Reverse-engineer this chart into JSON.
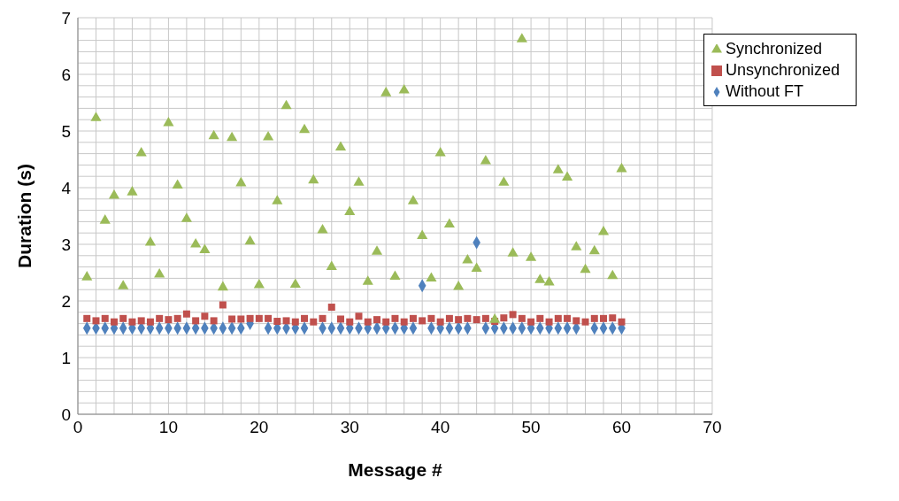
{
  "chart_data": {
    "type": "scatter",
    "xlabel": "Message #",
    "ylabel": "Duration (s)",
    "x": [
      1,
      2,
      3,
      4,
      5,
      6,
      7,
      8,
      9,
      10,
      11,
      12,
      13,
      14,
      15,
      16,
      17,
      18,
      19,
      20,
      21,
      22,
      23,
      24,
      25,
      26,
      27,
      28,
      29,
      30,
      31,
      32,
      33,
      34,
      35,
      36,
      37,
      38,
      39,
      40,
      41,
      42,
      43,
      44,
      45,
      46,
      47,
      48,
      49,
      50,
      51,
      52,
      53,
      54,
      55,
      56,
      57,
      58,
      59,
      60
    ],
    "series": [
      {
        "name": "Without FT",
        "color": "#4f81bd",
        "marker": "diamond",
        "values": [
          1.52,
          1.52,
          1.52,
          1.52,
          1.52,
          1.52,
          1.52,
          1.52,
          1.52,
          1.52,
          1.52,
          1.52,
          1.52,
          1.52,
          1.52,
          1.52,
          1.52,
          1.52,
          1.6,
          null,
          1.52,
          1.52,
          1.52,
          1.52,
          1.52,
          null,
          1.52,
          1.52,
          1.52,
          1.52,
          1.52,
          1.52,
          1.52,
          1.52,
          1.52,
          1.52,
          1.52,
          2.27,
          1.52,
          1.52,
          1.52,
          1.52,
          1.52,
          3.03,
          1.52,
          1.52,
          1.52,
          1.52,
          1.52,
          1.52,
          1.52,
          1.52,
          1.52,
          1.52,
          1.52,
          null,
          1.52,
          1.52,
          1.52,
          1.52
        ]
      },
      {
        "name": "Unsynchronized",
        "color": "#c0504d",
        "marker": "square",
        "values": [
          1.69,
          1.65,
          1.69,
          1.63,
          1.69,
          1.63,
          1.65,
          1.63,
          1.69,
          1.67,
          1.69,
          1.77,
          1.65,
          1.73,
          1.65,
          1.93,
          1.68,
          1.68,
          1.69,
          1.69,
          1.69,
          1.64,
          1.65,
          1.63,
          1.69,
          1.63,
          1.69,
          1.89,
          1.68,
          1.63,
          1.73,
          1.63,
          1.67,
          1.63,
          1.69,
          1.63,
          1.69,
          1.65,
          1.69,
          1.63,
          1.69,
          1.67,
          1.69,
          1.67,
          1.69,
          1.64,
          1.7,
          1.76,
          1.69,
          1.63,
          1.69,
          1.63,
          1.69,
          1.69,
          1.65,
          1.63,
          1.69,
          1.69,
          1.7,
          1.63
        ]
      },
      {
        "name": "Synchronized",
        "color": "#9bbb59",
        "marker": "triangle",
        "values": [
          2.42,
          5.23,
          3.42,
          3.86,
          2.26,
          3.92,
          4.61,
          3.03,
          2.47,
          5.14,
          4.04,
          3.45,
          3.0,
          2.9,
          4.91,
          2.24,
          4.88,
          4.08,
          3.05,
          2.28,
          4.89,
          3.76,
          5.44,
          2.29,
          5.02,
          4.13,
          3.25,
          2.6,
          4.71,
          3.57,
          4.09,
          2.34,
          2.87,
          5.67,
          2.43,
          5.72,
          3.76,
          3.15,
          2.4,
          4.61,
          3.35,
          2.25,
          2.72,
          2.57,
          4.47,
          1.67,
          4.09,
          2.84,
          6.62,
          2.76,
          2.37,
          2.33,
          4.31,
          4.18,
          2.95,
          2.55,
          2.88,
          3.22,
          2.44,
          4.33
        ]
      }
    ],
    "xlim": [
      0,
      70
    ],
    "xticks": [
      0,
      {
        "value": 2,
        "label": null
      },
      {
        "value": 4,
        "label": null
      },
      {
        "value": 6,
        "label": null
      },
      {
        "value": 8,
        "label": null
      },
      10,
      {
        "value": 12,
        "label": null
      },
      {
        "value": 14,
        "label": null
      },
      {
        "value": 16,
        "label": null
      },
      {
        "value": 18,
        "label": null
      },
      20,
      {
        "value": 22,
        "label": null
      },
      {
        "value": 24,
        "label": null
      },
      {
        "value": 26,
        "label": null
      },
      {
        "value": 28,
        "label": null
      },
      30,
      {
        "value": 32,
        "label": null
      },
      {
        "value": 34,
        "label": null
      },
      {
        "value": 36,
        "label": null
      },
      {
        "value": 38,
        "label": null
      },
      40,
      {
        "value": 42,
        "label": null
      },
      {
        "value": 44,
        "label": null
      },
      {
        "value": 46,
        "label": null
      },
      {
        "value": 48,
        "label": null
      },
      50,
      {
        "value": 52,
        "label": null
      },
      {
        "value": 54,
        "label": null
      },
      {
        "value": 56,
        "label": null
      },
      {
        "value": 58,
        "label": null
      },
      60,
      {
        "value": 62,
        "label": null
      },
      {
        "value": 64,
        "label": null
      },
      {
        "value": 66,
        "label": null
      },
      {
        "value": 68,
        "label": null
      },
      70
    ],
    "ylim": [
      0,
      7
    ],
    "yticks": [
      0,
      {
        "value": 0.2,
        "label": null
      },
      {
        "value": 0.4,
        "label": null
      },
      {
        "value": 0.6,
        "label": null
      },
      {
        "value": 0.8,
        "label": null
      },
      1,
      {
        "value": 1.2,
        "label": null
      },
      {
        "value": 1.4,
        "label": null
      },
      {
        "value": 1.6,
        "label": null
      },
      {
        "value": 1.8,
        "label": null
      },
      2,
      {
        "value": 2.2,
        "label": null
      },
      {
        "value": 2.4,
        "label": null
      },
      {
        "value": 2.6,
        "label": null
      },
      {
        "value": 2.8,
        "label": null
      },
      3,
      {
        "value": 3.2,
        "label": null
      },
      {
        "value": 3.4,
        "label": null
      },
      {
        "value": 3.6,
        "label": null
      },
      {
        "value": 3.8,
        "label": null
      },
      4,
      {
        "value": 4.2,
        "label": null
      },
      {
        "value": 4.4,
        "label": null
      },
      {
        "value": 4.6,
        "label": null
      },
      {
        "value": 4.8,
        "label": null
      },
      5,
      {
        "value": 5.2,
        "label": null
      },
      {
        "value": 5.4,
        "label": null
      },
      {
        "value": 5.6,
        "label": null
      },
      {
        "value": 5.8,
        "label": null
      },
      6,
      {
        "value": 6.2,
        "label": null
      },
      {
        "value": 6.4,
        "label": null
      },
      {
        "value": 6.6,
        "label": null
      },
      {
        "value": 6.8,
        "label": null
      },
      7
    ],
    "grid": true,
    "legend": "top right"
  }
}
